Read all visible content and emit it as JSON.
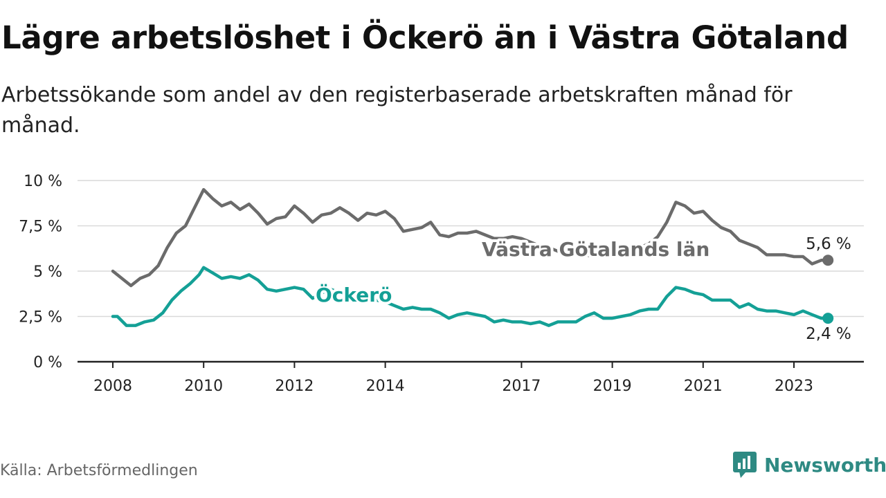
{
  "title": "Lägre arbetslöshet i Öckerö än i Västra Götaland",
  "subtitle": "Arbetssökande som andel av den registerbaserade arbetskraften månad för månad.",
  "source": "Källa: Arbetsförmedlingen",
  "brand": {
    "name": "Newsworthy",
    "logo_icon": "newsworthy-chart-bubble-icon",
    "color": "#2e8a83"
  },
  "colors": {
    "region": "#6b6b6b",
    "municipality": "#14a096",
    "grid": "#d9d9d9",
    "axis": "#222222"
  },
  "chart_data": {
    "type": "line",
    "title": "Lägre arbetslöshet i Öckerö än i Västra Götaland",
    "subtitle": "Arbetssökande som andel av den registerbaserade arbetskraften månad för månad.",
    "xlabel": "",
    "ylabel": "",
    "xlim": [
      2008.0,
      2024.5
    ],
    "ylim": [
      0,
      10
    ],
    "grid": "horizontal",
    "y_ticks": [
      {
        "value": 0,
        "label": "0 %"
      },
      {
        "value": 2.5,
        "label": "2,5 %"
      },
      {
        "value": 5,
        "label": "5 %"
      },
      {
        "value": 7.5,
        "label": "7,5 %"
      },
      {
        "value": 10,
        "label": "10 %"
      }
    ],
    "x_ticks": [
      {
        "value": 2008,
        "label": "2008"
      },
      {
        "value": 2010,
        "label": "2010"
      },
      {
        "value": 2012,
        "label": "2012"
      },
      {
        "value": 2014,
        "label": "2014"
      },
      {
        "value": 2017,
        "label": "2017"
      },
      {
        "value": 2019,
        "label": "2019"
      },
      {
        "value": 2021,
        "label": "2021"
      },
      {
        "value": 2023,
        "label": "2023"
      }
    ],
    "series": [
      {
        "name": "Västra Götalands län",
        "color": "#6b6b6b",
        "end_label": "5,6 %",
        "points": [
          [
            2008.0,
            5.0
          ],
          [
            2008.2,
            4.6
          ],
          [
            2008.4,
            4.2
          ],
          [
            2008.6,
            4.6
          ],
          [
            2008.8,
            4.8
          ],
          [
            2009.0,
            5.3
          ],
          [
            2009.2,
            6.3
          ],
          [
            2009.4,
            7.1
          ],
          [
            2009.6,
            7.5
          ],
          [
            2009.8,
            8.5
          ],
          [
            2010.0,
            9.5
          ],
          [
            2010.2,
            9.0
          ],
          [
            2010.4,
            8.6
          ],
          [
            2010.6,
            8.8
          ],
          [
            2010.8,
            8.4
          ],
          [
            2011.0,
            8.7
          ],
          [
            2011.2,
            8.2
          ],
          [
            2011.4,
            7.6
          ],
          [
            2011.6,
            7.9
          ],
          [
            2011.8,
            8.0
          ],
          [
            2012.0,
            8.6
          ],
          [
            2012.2,
            8.2
          ],
          [
            2012.4,
            7.7
          ],
          [
            2012.6,
            8.1
          ],
          [
            2012.8,
            8.2
          ],
          [
            2013.0,
            8.5
          ],
          [
            2013.2,
            8.2
          ],
          [
            2013.4,
            7.8
          ],
          [
            2013.6,
            8.2
          ],
          [
            2013.8,
            8.1
          ],
          [
            2014.0,
            8.3
          ],
          [
            2014.2,
            7.9
          ],
          [
            2014.4,
            7.2
          ],
          [
            2014.6,
            7.3
          ],
          [
            2014.8,
            7.4
          ],
          [
            2015.0,
            7.7
          ],
          [
            2015.2,
            7.0
          ],
          [
            2015.4,
            6.9
          ],
          [
            2015.6,
            7.1
          ],
          [
            2015.8,
            7.1
          ],
          [
            2016.0,
            7.2
          ],
          [
            2016.2,
            7.0
          ],
          [
            2016.4,
            6.8
          ],
          [
            2016.6,
            6.8
          ],
          [
            2016.8,
            6.9
          ],
          [
            2017.0,
            6.8
          ],
          [
            2017.2,
            6.6
          ],
          [
            2017.4,
            6.4
          ],
          [
            2017.6,
            6.3
          ],
          [
            2017.8,
            6.1
          ],
          [
            2018.0,
            6.0
          ],
          [
            2018.2,
            5.9
          ],
          [
            2018.4,
            5.9
          ],
          [
            2018.6,
            5.8
          ],
          [
            2018.8,
            5.8
          ],
          [
            2019.0,
            5.9
          ],
          [
            2019.2,
            6.0
          ],
          [
            2019.4,
            6.2
          ],
          [
            2019.6,
            6.3
          ],
          [
            2019.8,
            6.5
          ],
          [
            2020.0,
            6.9
          ],
          [
            2020.2,
            7.7
          ],
          [
            2020.4,
            8.8
          ],
          [
            2020.6,
            8.6
          ],
          [
            2020.8,
            8.2
          ],
          [
            2021.0,
            8.3
          ],
          [
            2021.2,
            7.8
          ],
          [
            2021.4,
            7.4
          ],
          [
            2021.6,
            7.2
          ],
          [
            2021.8,
            6.7
          ],
          [
            2022.0,
            6.5
          ],
          [
            2022.2,
            6.3
          ],
          [
            2022.4,
            5.9
          ],
          [
            2022.6,
            5.9
          ],
          [
            2022.8,
            5.9
          ],
          [
            2023.0,
            5.8
          ],
          [
            2023.2,
            5.8
          ],
          [
            2023.4,
            5.4
          ],
          [
            2023.6,
            5.6
          ],
          [
            2023.75,
            5.6
          ]
        ]
      },
      {
        "name": "Öckerö",
        "color": "#14a096",
        "end_label": "2,4 %",
        "points": [
          [
            2008.0,
            2.5
          ],
          [
            2008.1,
            2.5
          ],
          [
            2008.3,
            2.0
          ],
          [
            2008.5,
            2.0
          ],
          [
            2008.7,
            2.2
          ],
          [
            2008.9,
            2.3
          ],
          [
            2009.1,
            2.7
          ],
          [
            2009.3,
            3.4
          ],
          [
            2009.5,
            3.9
          ],
          [
            2009.7,
            4.3
          ],
          [
            2009.9,
            4.8
          ],
          [
            2010.0,
            5.2
          ],
          [
            2010.2,
            4.9
          ],
          [
            2010.4,
            4.6
          ],
          [
            2010.6,
            4.7
          ],
          [
            2010.8,
            4.6
          ],
          [
            2011.0,
            4.8
          ],
          [
            2011.2,
            4.5
          ],
          [
            2011.4,
            4.0
          ],
          [
            2011.6,
            3.9
          ],
          [
            2011.8,
            4.0
          ],
          [
            2012.0,
            4.1
          ],
          [
            2012.2,
            4.0
          ],
          [
            2012.4,
            3.5
          ],
          [
            2012.6,
            3.8
          ],
          [
            2012.8,
            4.0
          ],
          [
            2013.0,
            3.8
          ],
          [
            2013.2,
            3.7
          ],
          [
            2013.4,
            3.5
          ],
          [
            2013.6,
            3.3
          ],
          [
            2013.8,
            3.4
          ],
          [
            2014.0,
            3.3
          ],
          [
            2014.2,
            3.1
          ],
          [
            2014.4,
            2.9
          ],
          [
            2014.6,
            3.0
          ],
          [
            2014.8,
            2.9
          ],
          [
            2015.0,
            2.9
          ],
          [
            2015.2,
            2.7
          ],
          [
            2015.4,
            2.4
          ],
          [
            2015.6,
            2.6
          ],
          [
            2015.8,
            2.7
          ],
          [
            2016.0,
            2.6
          ],
          [
            2016.2,
            2.5
          ],
          [
            2016.4,
            2.2
          ],
          [
            2016.6,
            2.3
          ],
          [
            2016.8,
            2.2
          ],
          [
            2017.0,
            2.2
          ],
          [
            2017.2,
            2.1
          ],
          [
            2017.4,
            2.2
          ],
          [
            2017.6,
            2.0
          ],
          [
            2017.8,
            2.2
          ],
          [
            2018.0,
            2.2
          ],
          [
            2018.2,
            2.2
          ],
          [
            2018.4,
            2.5
          ],
          [
            2018.6,
            2.7
          ],
          [
            2018.8,
            2.4
          ],
          [
            2019.0,
            2.4
          ],
          [
            2019.2,
            2.5
          ],
          [
            2019.4,
            2.6
          ],
          [
            2019.6,
            2.8
          ],
          [
            2019.8,
            2.9
          ],
          [
            2020.0,
            2.9
          ],
          [
            2020.2,
            3.6
          ],
          [
            2020.4,
            4.1
          ],
          [
            2020.6,
            4.0
          ],
          [
            2020.8,
            3.8
          ],
          [
            2021.0,
            3.7
          ],
          [
            2021.2,
            3.4
          ],
          [
            2021.4,
            3.4
          ],
          [
            2021.6,
            3.4
          ],
          [
            2021.8,
            3.0
          ],
          [
            2022.0,
            3.2
          ],
          [
            2022.2,
            2.9
          ],
          [
            2022.4,
            2.8
          ],
          [
            2022.6,
            2.8
          ],
          [
            2022.8,
            2.7
          ],
          [
            2023.0,
            2.6
          ],
          [
            2023.2,
            2.8
          ],
          [
            2023.4,
            2.6
          ],
          [
            2023.6,
            2.4
          ],
          [
            2023.75,
            2.4
          ]
        ]
      }
    ],
    "annotations": [
      {
        "text": "Västra Götalands län",
        "series": "Västra Götalands län"
      },
      {
        "text": "Öckerö",
        "series": "Öckerö"
      }
    ]
  }
}
